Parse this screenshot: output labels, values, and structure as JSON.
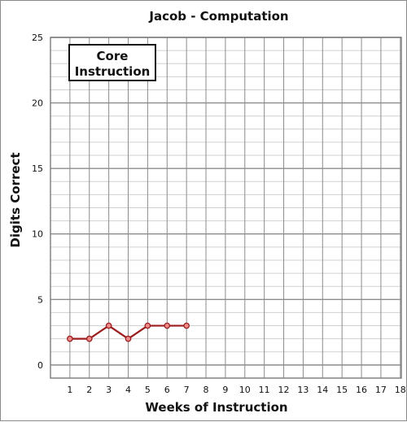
{
  "chart_data": {
    "type": "line",
    "title": "Jacob - Computation",
    "xlabel": "Weeks of Instruction",
    "ylabel": "Digits Correct",
    "xlim": [
      0,
      18
    ],
    "ylim": [
      0,
      25
    ],
    "x_ticks": [
      1,
      2,
      3,
      4,
      5,
      6,
      7,
      8,
      9,
      10,
      11,
      12,
      13,
      14,
      15,
      16,
      17,
      18
    ],
    "y_ticks": [
      0,
      5,
      10,
      15,
      20,
      25
    ],
    "grid": true,
    "annotation": {
      "lines": [
        "Core",
        "Instruction"
      ],
      "position": "top-left"
    },
    "series": [
      {
        "x": [
          1,
          2,
          3,
          4,
          5,
          6,
          7
        ],
        "values": [
          2,
          2,
          3,
          2,
          3,
          3,
          3
        ]
      }
    ],
    "colors": {
      "line": "#9b1c1c",
      "marker_fill": "#f08a8a",
      "grid_major": "#8c8c8c",
      "grid_minor": "#d0d0d0"
    }
  }
}
